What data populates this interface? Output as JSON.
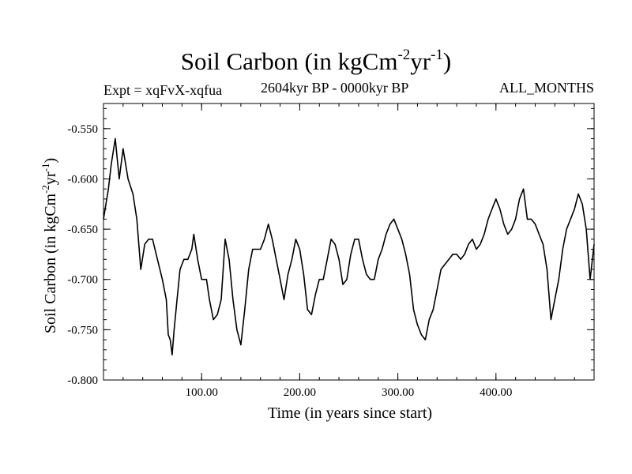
{
  "header": {
    "expt": "Expt = xqFvX-xqfua",
    "subtitle": "2604kyr BP - 0000kyr BP",
    "months": "ALL_MONTHS"
  },
  "chart_data": {
    "type": "line",
    "title": "Soil Carbon (in kgCm^-2yr^-1)",
    "title_parts": [
      "Soil Carbon (in kgCm",
      "-2",
      "yr",
      "-1",
      ")"
    ],
    "xlabel": "Time (in years since start)",
    "ylabel_parts": [
      "Soil Carbon (in kgCm",
      "-2",
      "yr",
      "-1",
      ")"
    ],
    "xlim": [
      0,
      500
    ],
    "ylim": [
      -0.8,
      -0.525
    ],
    "xticks": [
      100,
      200,
      300,
      400
    ],
    "xtick_labels": [
      "100.00",
      "200.00",
      "300.00",
      "400.00"
    ],
    "yticks": [
      -0.8,
      -0.75,
      -0.7,
      -0.65,
      -0.6,
      -0.55
    ],
    "ytick_labels": [
      "-0.800",
      "-0.750",
      "-0.700",
      "-0.650",
      "-0.600",
      "-0.550"
    ],
    "color": "#000000",
    "series": [
      {
        "name": "Soil Carbon",
        "x": [
          0,
          5,
          8,
          12,
          16,
          20,
          25,
          30,
          34,
          38,
          42,
          46,
          50,
          55,
          60,
          64,
          66,
          68,
          70,
          72,
          75,
          78,
          82,
          86,
          90,
          92,
          96,
          100,
          105,
          108,
          112,
          116,
          120,
          124,
          128,
          132,
          136,
          140,
          144,
          148,
          152,
          156,
          160,
          164,
          168,
          172,
          176,
          180,
          184,
          188,
          192,
          196,
          200,
          204,
          208,
          212,
          216,
          220,
          224,
          228,
          232,
          236,
          240,
          244,
          248,
          252,
          256,
          260,
          264,
          268,
          272,
          276,
          280,
          284,
          288,
          292,
          296,
          300,
          304,
          308,
          312,
          316,
          320,
          324,
          328,
          332,
          336,
          340,
          344,
          348,
          352,
          356,
          360,
          364,
          368,
          372,
          376,
          380,
          384,
          388,
          392,
          396,
          400,
          404,
          408,
          412,
          416,
          420,
          424,
          428,
          432,
          436,
          440,
          444,
          448,
          452,
          456,
          460,
          464,
          468,
          472,
          476,
          480,
          484,
          488,
          492,
          496,
          500
        ],
        "y": [
          -0.64,
          -0.61,
          -0.585,
          -0.56,
          -0.6,
          -0.57,
          -0.6,
          -0.615,
          -0.64,
          -0.69,
          -0.665,
          -0.66,
          -0.66,
          -0.68,
          -0.7,
          -0.72,
          -0.755,
          -0.76,
          -0.775,
          -0.75,
          -0.72,
          -0.69,
          -0.68,
          -0.68,
          -0.67,
          -0.655,
          -0.68,
          -0.7,
          -0.7,
          -0.72,
          -0.74,
          -0.735,
          -0.72,
          -0.66,
          -0.68,
          -0.72,
          -0.75,
          -0.765,
          -0.73,
          -0.69,
          -0.67,
          -0.67,
          -0.67,
          -0.66,
          -0.645,
          -0.66,
          -0.68,
          -0.7,
          -0.72,
          -0.695,
          -0.68,
          -0.66,
          -0.67,
          -0.695,
          -0.73,
          -0.735,
          -0.715,
          -0.7,
          -0.7,
          -0.68,
          -0.66,
          -0.665,
          -0.68,
          -0.705,
          -0.7,
          -0.675,
          -0.66,
          -0.66,
          -0.68,
          -0.695,
          -0.7,
          -0.7,
          -0.68,
          -0.67,
          -0.655,
          -0.645,
          -0.64,
          -0.65,
          -0.66,
          -0.675,
          -0.695,
          -0.73,
          -0.745,
          -0.755,
          -0.76,
          -0.74,
          -0.73,
          -0.71,
          -0.69,
          -0.685,
          -0.68,
          -0.675,
          -0.675,
          -0.68,
          -0.675,
          -0.665,
          -0.66,
          -0.67,
          -0.665,
          -0.655,
          -0.64,
          -0.63,
          -0.62,
          -0.63,
          -0.645,
          -0.655,
          -0.65,
          -0.64,
          -0.62,
          -0.61,
          -0.64,
          -0.64,
          -0.645,
          -0.655,
          -0.665,
          -0.69,
          -0.74,
          -0.72,
          -0.7,
          -0.67,
          -0.65,
          -0.64,
          -0.63,
          -0.615,
          -0.625,
          -0.65,
          -0.7,
          -0.665
        ]
      }
    ]
  }
}
